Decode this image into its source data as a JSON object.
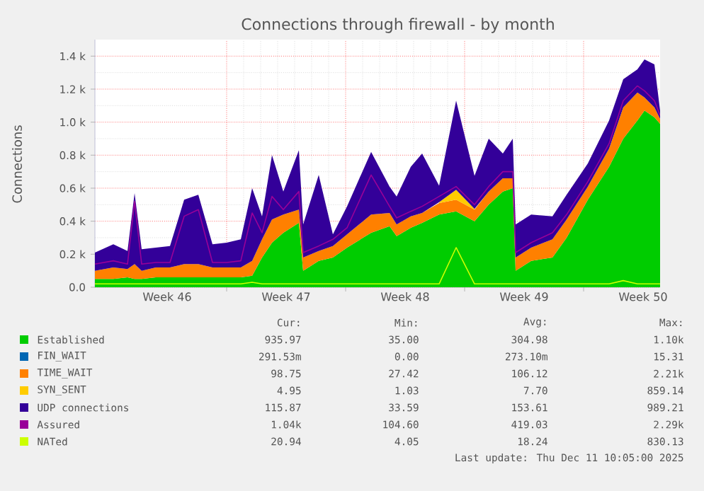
{
  "chart_data": {
    "type": "area",
    "stacked": true,
    "title": "Connections through firewall - by month",
    "ylabel": "Connections",
    "x": [
      "2025-11-09T06:00",
      "2025-11-10T08:00",
      "2025-11-11T04:00",
      "2025-11-11T14:00",
      "2025-11-12T00:00",
      "2025-11-12T20:00",
      "2025-11-13T16:00",
      "2025-11-14T12:00",
      "2025-11-15T08:00",
      "2025-11-16T04:00",
      "2025-11-17T00:00",
      "2025-11-17T20:00",
      "2025-11-18T12:00",
      "2025-11-19T02:00",
      "2025-11-19T16:00",
      "2025-11-20T08:00",
      "2025-11-21T06:00",
      "2025-11-21T12:00",
      "2025-11-22T10:00",
      "2025-11-23T06:00",
      "2025-11-24T02:00",
      "2025-11-25T12:00",
      "2025-11-26T14:00",
      "2025-11-27T00:00",
      "2025-11-27T20:00",
      "2025-11-28T12:00",
      "2025-11-29T12:00",
      "2025-11-30T12:00",
      "2025-12-01T14:00",
      "2025-12-02T10:00",
      "2025-12-03T06:00",
      "2025-12-03T20:00",
      "2025-12-04T00:00",
      "2025-12-04T22:00",
      "2025-12-06T04:00",
      "2025-12-07T00:00",
      "2025-12-08T06:00",
      "2025-12-09T12:00",
      "2025-12-10T08:00",
      "2025-12-11T04:00",
      "2025-12-11T14:00",
      "2025-12-12T04:00",
      "2025-12-12T12:00"
    ],
    "series": [
      {
        "name": "Established",
        "color": "#00cc00",
        "values": [
          50,
          50,
          60,
          50,
          50,
          60,
          60,
          60,
          60,
          60,
          60,
          60,
          70,
          180,
          270,
          330,
          390,
          100,
          160,
          180,
          240,
          330,
          370,
          310,
          360,
          390,
          440,
          460,
          400,
          500,
          580,
          600,
          100,
          160,
          180,
          300,
          530,
          730,
          900,
          1010,
          1070,
          1030,
          990
        ]
      },
      {
        "name": "FIN_WAIT",
        "color": "#0066b3",
        "values": [
          null,
          null,
          null,
          null,
          null,
          null,
          null,
          null,
          null,
          null,
          null,
          null,
          null,
          null,
          null,
          null,
          null,
          null,
          null,
          null,
          null,
          null,
          null,
          null,
          null,
          null,
          null,
          null,
          null,
          null,
          null,
          null,
          null,
          null,
          null,
          null,
          null,
          null,
          null,
          null,
          null,
          null,
          null
        ]
      },
      {
        "name": "TIME_WAIT",
        "color": "#ff8000",
        "values": [
          50,
          70,
          50,
          90,
          50,
          60,
          60,
          80,
          80,
          60,
          60,
          60,
          90,
          110,
          140,
          110,
          80,
          80,
          60,
          70,
          80,
          110,
          80,
          70,
          70,
          60,
          70,
          70,
          70,
          80,
          80,
          60,
          80,
          80,
          110,
          110,
          80,
          110,
          190,
          170,
          80,
          60,
          30
        ]
      },
      {
        "name": "SYN_SENT",
        "color": "#ffcc00",
        "values": [
          null,
          null,
          null,
          null,
          null,
          null,
          null,
          null,
          null,
          null,
          null,
          null,
          null,
          null,
          null,
          null,
          null,
          null,
          null,
          null,
          null,
          null,
          null,
          null,
          null,
          null,
          5,
          60,
          5,
          null,
          null,
          null,
          null,
          null,
          null,
          null,
          null,
          null,
          null,
          null,
          null,
          null,
          null
        ]
      },
      {
        "name": "UDP connections",
        "color": "#330099",
        "values": [
          110,
          140,
          110,
          430,
          130,
          120,
          130,
          390,
          420,
          140,
          150,
          170,
          440,
          140,
          390,
          140,
          360,
          200,
          460,
          70,
          170,
          380,
          160,
          170,
          300,
          360,
          100,
          540,
          200,
          320,
          150,
          240,
          200,
          200,
          140,
          150,
          140,
          170,
          170,
          140,
          230,
          260,
          50
        ]
      },
      {
        "name": "Assured",
        "type": "line",
        "color": "#990099",
        "values": [
          140,
          160,
          140,
          520,
          140,
          150,
          150,
          430,
          470,
          150,
          150,
          160,
          450,
          330,
          550,
          470,
          580,
          210,
          250,
          290,
          360,
          680,
          490,
          420,
          460,
          490,
          550,
          610,
          500,
          610,
          700,
          700,
          210,
          270,
          330,
          440,
          640,
          870,
          1130,
          1220,
          1190,
          1130,
          1040
        ]
      },
      {
        "name": "NATed",
        "type": "line",
        "color": "#ccff00",
        "values": [
          20,
          20,
          20,
          20,
          20,
          20,
          20,
          20,
          20,
          20,
          20,
          20,
          30,
          20,
          20,
          20,
          20,
          20,
          20,
          20,
          20,
          20,
          20,
          20,
          20,
          20,
          20,
          240,
          20,
          20,
          20,
          20,
          20,
          20,
          20,
          20,
          20,
          20,
          40,
          20,
          20,
          20,
          20
        ]
      }
    ],
    "xlim": [
      "2025-11-09T06:00",
      "2025-12-12T12:00"
    ],
    "xticks": [
      {
        "value": "2025-11-13T12:00",
        "label": "Week 46"
      },
      {
        "value": "2025-11-17",
        "label": null
      },
      {
        "value": "2025-11-20T12:00",
        "label": "Week 47"
      },
      {
        "value": "2025-11-24",
        "label": null
      },
      {
        "value": "2025-11-27T12:00",
        "label": "Week 48"
      },
      {
        "value": "2025-12-01",
        "label": null
      },
      {
        "value": "2025-12-04T12:00",
        "label": "Week 49"
      },
      {
        "value": "2025-12-08",
        "label": null
      },
      {
        "value": "2025-12-11T12:00",
        "label": "Week 50"
      }
    ],
    "ylim": [
      0,
      1500
    ],
    "yticks": [
      {
        "value": 0,
        "label": "0.0"
      },
      {
        "value": 200,
        "label": "0.2 k"
      },
      {
        "value": 400,
        "label": "0.4 k"
      },
      {
        "value": 600,
        "label": "0.6 k"
      },
      {
        "value": 800,
        "label": "0.8 k"
      },
      {
        "value": 1000,
        "label": "1.0 k"
      },
      {
        "value": 1200,
        "label": "1.2 k"
      },
      {
        "value": 1400,
        "label": "1.4 k"
      }
    ],
    "grid": true,
    "legend": "bottom",
    "annotations": [
      "Cur:",
      "Min:",
      "Avg:",
      "Max:",
      "935.97",
      "35.00",
      "304.98",
      "1.10k",
      "291.53m",
      "0.00",
      "273.10m",
      "15.31",
      "98.75",
      "27.42",
      "106.12",
      "2.21k",
      "4.95",
      "1.03",
      "7.70",
      "859.14",
      "115.87",
      "33.59",
      "153.61",
      "989.21",
      "1.04k",
      "104.60",
      "419.03",
      "2.29k",
      "20.94",
      "4.05",
      "18.24",
      "830.13",
      "Last update: Thu Dec 11 10:05:00 2025"
    ]
  }
}
